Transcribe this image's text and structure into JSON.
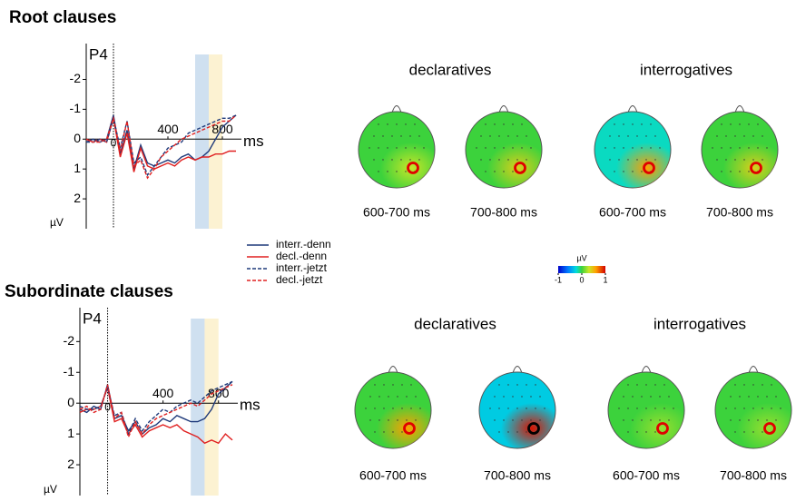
{
  "chart_data": [
    {
      "type": "line",
      "title": "Root clauses",
      "channel": "P4",
      "x_unit": "ms",
      "y_unit": "µV",
      "xlim": [
        -200,
        900
      ],
      "xticks": [
        0,
        400,
        800
      ],
      "ylim": [
        3,
        -3.2
      ],
      "yticks": [
        -2,
        -1,
        0,
        1,
        2
      ],
      "windows": [
        {
          "range": [
            600,
            700
          ],
          "color": "#cfe0f0"
        },
        {
          "range": [
            700,
            800
          ],
          "color": "#fcf2d2"
        }
      ],
      "x": [
        -200,
        -150,
        -100,
        -50,
        0,
        50,
        100,
        150,
        200,
        250,
        300,
        350,
        400,
        450,
        500,
        550,
        600,
        650,
        700,
        750,
        800,
        850,
        900
      ],
      "series": [
        {
          "name": "interr.-denn",
          "color": "#1f3a7a",
          "dash": false,
          "values": [
            0.1,
            0,
            0.1,
            0,
            -0.8,
            0.5,
            -0.3,
            1.0,
            0.2,
            0.8,
            0.9,
            0.8,
            0.7,
            0.8,
            0.6,
            0.5,
            0.7,
            0.6,
            0.4,
            0,
            -0.4,
            -0.6,
            -0.8
          ]
        },
        {
          "name": "decl.-denn",
          "color": "#e02020",
          "dash": false,
          "values": [
            0,
            0.1,
            0,
            0.1,
            -0.7,
            0.6,
            -0.2,
            1.1,
            0.3,
            0.9,
            1.0,
            0.9,
            0.8,
            0.9,
            0.7,
            0.6,
            0.7,
            0.6,
            0.6,
            0.5,
            0.5,
            0.4,
            0.4
          ]
        },
        {
          "name": "interr.-jetzt",
          "color": "#1f3a7a",
          "dash": true,
          "values": [
            0.1,
            0.1,
            0,
            0.1,
            -0.7,
            0.3,
            -0.6,
            0.8,
            0.6,
            1.2,
            0.9,
            0.6,
            0.3,
            0.2,
            0.1,
            -0.2,
            -0.3,
            -0.4,
            -0.5,
            -0.6,
            -0.7,
            -0.7,
            -0.8
          ]
        },
        {
          "name": "decl.-jetzt",
          "color": "#e02020",
          "dash": true,
          "values": [
            0,
            0.1,
            0.1,
            0,
            -0.7,
            0.4,
            -0.6,
            0.9,
            0.7,
            1.3,
            1.0,
            0.6,
            0.4,
            0.2,
            0,
            -0.1,
            -0.2,
            -0.3,
            -0.4,
            -0.5,
            -0.6,
            -0.6,
            -0.8
          ]
        }
      ]
    },
    {
      "type": "line",
      "title": "Subordinate clauses",
      "channel": "P4",
      "x_unit": "ms",
      "y_unit": "µV",
      "xlim": [
        -200,
        900
      ],
      "xticks": [
        0,
        400,
        800
      ],
      "ylim": [
        3,
        -3.1
      ],
      "yticks": [
        -2,
        -1,
        0,
        1,
        2
      ],
      "windows": [
        {
          "range": [
            600,
            700
          ],
          "color": "#cfe0f0"
        },
        {
          "range": [
            700,
            800
          ],
          "color": "#fcf2d2"
        }
      ],
      "x": [
        -200,
        -150,
        -100,
        -50,
        0,
        50,
        100,
        150,
        200,
        250,
        300,
        350,
        400,
        450,
        500,
        550,
        600,
        650,
        700,
        750,
        800,
        850,
        900
      ],
      "series": [
        {
          "color": "#1f3a7a",
          "dash": false,
          "values": [
            0.2,
            0.3,
            0.1,
            0.2,
            -0.6,
            0.5,
            0.4,
            0.9,
            0.6,
            1.0,
            0.8,
            0.7,
            0.5,
            0.6,
            0.4,
            0.5,
            0.6,
            0.6,
            0.5,
            0.2,
            -0.3,
            -0.5,
            -0.7
          ]
        },
        {
          "color": "#e02020",
          "dash": false,
          "values": [
            0.3,
            0.2,
            0.2,
            0.1,
            -0.5,
            0.6,
            0.5,
            1.0,
            0.7,
            1.1,
            0.9,
            0.8,
            0.7,
            0.8,
            0.7,
            0.9,
            1.0,
            1.1,
            1.3,
            1.2,
            1.3,
            1.0,
            1.2
          ]
        },
        {
          "color": "#1f3a7a",
          "dash": true,
          "values": [
            0.1,
            0.2,
            0.2,
            0.1,
            -0.5,
            0.4,
            0.3,
            1.0,
            0.5,
            0.9,
            0.6,
            0.4,
            0.2,
            0.3,
            0.1,
            0,
            -0.1,
            0,
            -0.2,
            -0.4,
            -0.5,
            -0.6,
            -0.7
          ]
        },
        {
          "color": "#e02020",
          "dash": true,
          "values": [
            0.2,
            0.1,
            0.3,
            0.2,
            -0.6,
            0.5,
            0.3,
            1.1,
            0.6,
            1.0,
            0.7,
            0.5,
            0.4,
            0.3,
            0.2,
            0.1,
            0,
            0.1,
            -0.1,
            -0.3,
            -0.4,
            -0.5,
            -0.6
          ]
        }
      ]
    }
  ],
  "topomap_rows": [
    {
      "groups": [
        {
          "title": "declaratives",
          "maps": [
            {
              "window": "600-700 ms",
              "background": 0,
              "peak": 0.3,
              "marker_color": "#e00000"
            },
            {
              "window": "700-800 ms",
              "background": 0,
              "peak": 0.4,
              "marker_color": "#e00000"
            }
          ]
        },
        {
          "title": "interrogatives",
          "maps": [
            {
              "window": "600-700 ms",
              "background": -0.2,
              "peak": 0.6,
              "marker_color": "#e00000"
            },
            {
              "window": "700-800 ms",
              "background": 0,
              "peak": 0.4,
              "marker_color": "#e00000"
            }
          ]
        }
      ]
    },
    {
      "groups": [
        {
          "title": "declaratives",
          "maps": [
            {
              "window": "600-700 ms",
              "background": 0,
              "peak": 0.6,
              "marker_color": "#e00000"
            },
            {
              "window": "700-800 ms",
              "background": -0.3,
              "peak": 0.95,
              "marker_color": "#000000"
            }
          ]
        },
        {
          "title": "interrogatives",
          "maps": [
            {
              "window": "600-700 ms",
              "background": 0,
              "peak": 0.2,
              "marker_color": "#e00000"
            },
            {
              "window": "700-800 ms",
              "background": 0,
              "peak": 0.2,
              "marker_color": "#e00000"
            }
          ]
        }
      ]
    }
  ],
  "colorbar": {
    "label": "µV",
    "lim": [
      -1,
      1
    ],
    "ticks": [
      -1,
      0,
      1
    ]
  }
}
